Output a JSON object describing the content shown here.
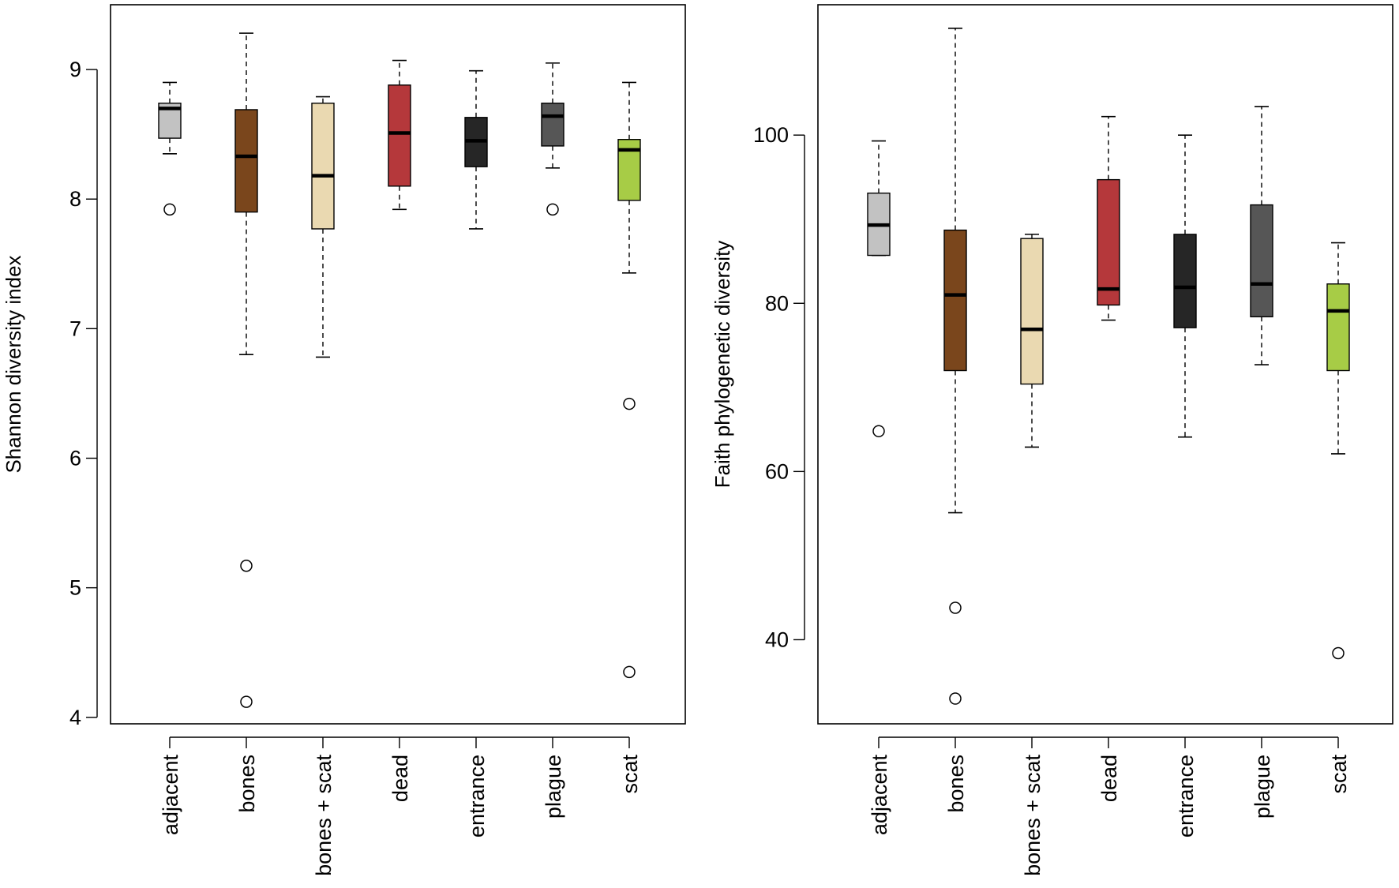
{
  "chart_data": [
    {
      "type": "box",
      "title": "",
      "xlabel": "",
      "ylabel": "Shannon diversity index",
      "ylim": [
        3.95,
        9.5
      ],
      "yticks": [
        4,
        5,
        6,
        7,
        8,
        9
      ],
      "categories": [
        "adjacent",
        "bones",
        "bones + scat",
        "dead",
        "entrance",
        "plague",
        "scat"
      ],
      "colors": [
        "#c2c2c2",
        "#7a461c",
        "#ead9b1",
        "#b5383b",
        "#262626",
        "#565656",
        "#a7cc46"
      ],
      "boxes": [
        {
          "whisker_low": 8.35,
          "q1": 8.47,
          "median": 8.7,
          "q3": 8.74,
          "whisker_high": 8.9,
          "outliers": [
            7.92
          ]
        },
        {
          "whisker_low": 6.8,
          "q1": 7.9,
          "median": 8.33,
          "q3": 8.69,
          "whisker_high": 9.28,
          "outliers": [
            5.17,
            4.12
          ]
        },
        {
          "whisker_low": 6.78,
          "q1": 7.77,
          "median": 8.18,
          "q3": 8.74,
          "whisker_high": 8.79,
          "outliers": []
        },
        {
          "whisker_low": 7.92,
          "q1": 8.1,
          "median": 8.51,
          "q3": 8.88,
          "whisker_high": 9.07,
          "outliers": []
        },
        {
          "whisker_low": 7.77,
          "q1": 8.25,
          "median": 8.45,
          "q3": 8.63,
          "whisker_high": 8.99,
          "outliers": []
        },
        {
          "whisker_low": 8.24,
          "q1": 8.41,
          "median": 8.64,
          "q3": 8.74,
          "whisker_high": 9.05,
          "outliers": [
            7.92
          ]
        },
        {
          "whisker_low": 7.43,
          "q1": 7.99,
          "median": 8.38,
          "q3": 8.46,
          "whisker_high": 8.9,
          "outliers": [
            6.42,
            4.35
          ]
        }
      ]
    },
    {
      "type": "box",
      "title": "",
      "xlabel": "",
      "ylabel": "Faith phylogenetic diversity",
      "ylim": [
        30,
        115.5
      ],
      "yticks": [
        40,
        60,
        80,
        100
      ],
      "categories": [
        "adjacent",
        "bones",
        "bones + scat",
        "dead",
        "entrance",
        "plague",
        "scat"
      ],
      "colors": [
        "#c2c2c2",
        "#7a461c",
        "#ead9b1",
        "#b5383b",
        "#262626",
        "#565656",
        "#a7cc46"
      ],
      "boxes": [
        {
          "whisker_low": 85.7,
          "q1": 85.7,
          "median": 89.3,
          "q3": 93.1,
          "whisker_high": 99.3,
          "outliers": [
            64.8
          ]
        },
        {
          "whisker_low": 55.1,
          "q1": 72.0,
          "median": 81.0,
          "q3": 88.7,
          "whisker_high": 112.7,
          "outliers": [
            43.8,
            33.0
          ]
        },
        {
          "whisker_low": 62.9,
          "q1": 70.4,
          "median": 76.9,
          "q3": 87.7,
          "whisker_high": 88.2,
          "outliers": []
        },
        {
          "whisker_low": 78.0,
          "q1": 79.8,
          "median": 81.7,
          "q3": 94.7,
          "whisker_high": 102.2,
          "outliers": []
        },
        {
          "whisker_low": 64.1,
          "q1": 77.1,
          "median": 81.9,
          "q3": 88.2,
          "whisker_high": 100.0,
          "outliers": []
        },
        {
          "whisker_low": 72.7,
          "q1": 78.4,
          "median": 82.3,
          "q3": 91.7,
          "whisker_high": 103.4,
          "outliers": []
        },
        {
          "whisker_low": 62.1,
          "q1": 72.0,
          "median": 79.1,
          "q3": 82.3,
          "whisker_high": 87.2,
          "outliers": [
            38.4
          ]
        }
      ]
    }
  ]
}
